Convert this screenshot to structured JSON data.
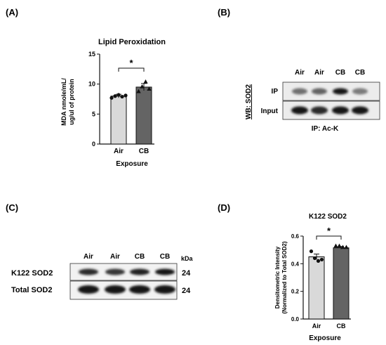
{
  "panels": {
    "A": {
      "label": "(A)",
      "title": "Lipid Peroxidation",
      "ylabel_line1": "MDA nmole/mL/",
      "ylabel_line2": "ug/ul of protein",
      "xlabel": "Exposure",
      "significance": "*"
    },
    "B": {
      "label": "(B)",
      "wb_label": "WB: SOD2",
      "lanes": [
        "Air",
        "Air",
        "CB",
        "CB"
      ],
      "rows": [
        "IP",
        "Input"
      ],
      "ip_label": "IP: Ac-K",
      "band_intensity": {
        "IP": [
          0.55,
          0.6,
          0.95,
          0.5
        ],
        "Input": [
          0.95,
          0.85,
          0.95,
          0.95
        ]
      }
    },
    "C": {
      "label": "(C)",
      "lanes": [
        "Air",
        "Air",
        "CB",
        "CB"
      ],
      "kda_label": "kDa",
      "rows": [
        {
          "name": "K122 SOD2",
          "kda": "24"
        },
        {
          "name": "Total SOD2",
          "kda": "24"
        }
      ],
      "band_intensity": {
        "K122 SOD2": [
          0.85,
          0.8,
          0.9,
          0.95
        ],
        "Total SOD2": [
          0.95,
          0.95,
          0.95,
          0.95
        ]
      }
    },
    "D": {
      "label": "(D)",
      "title": "K122 SOD2",
      "ylabel_line1": "Densitometric Intensity",
      "ylabel_line2": "(Normalized to Total SOD2)",
      "xlabel": "Exposure",
      "significance": "*"
    }
  },
  "chart_data": [
    {
      "type": "bar",
      "title": "Lipid Peroxidation",
      "xlabel": "Exposure",
      "ylabel": "MDA nmole/mL/ ug/ul of protein",
      "categories": [
        "Air",
        "CB"
      ],
      "values": [
        8.0,
        9.5
      ],
      "errors": [
        0.3,
        0.6
      ],
      "points": [
        [
          7.7,
          8.0,
          8.2,
          7.9,
          8.1
        ],
        [
          8.8,
          9.6,
          10.4,
          9.2
        ]
      ],
      "colors": [
        "#d9d9d9",
        "#646464"
      ],
      "ylim": [
        0,
        15
      ],
      "yticks": [
        0,
        5,
        10,
        15
      ],
      "grid": false
    },
    {
      "type": "bar",
      "title": "K122 SOD2",
      "xlabel": "Exposure",
      "ylabel": "Densitometric Intensity (Normalized to Total SOD2)",
      "categories": [
        "Air",
        "CB"
      ],
      "values": [
        0.45,
        0.515
      ],
      "errors": [
        0.02,
        0.01
      ],
      "points": [
        [
          0.49,
          0.44,
          0.42,
          0.43
        ],
        [
          0.53,
          0.53,
          0.52,
          0.52
        ]
      ],
      "colors": [
        "#d9d9d9",
        "#646464"
      ],
      "ylim": [
        0,
        0.6
      ],
      "yticks": [
        0.0,
        0.2,
        0.4,
        0.6
      ],
      "yticklabels": [
        "0.0",
        "0.2",
        "0.4",
        "0.6"
      ],
      "grid": false
    }
  ]
}
